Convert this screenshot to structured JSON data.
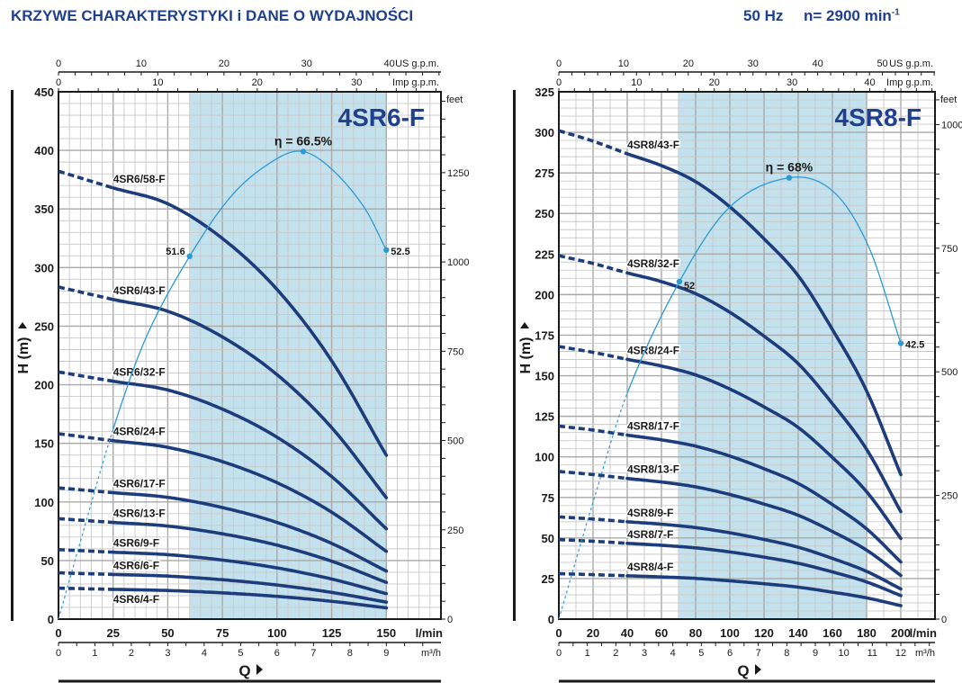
{
  "header": {
    "title": "KRZYWE CHARAKTERYSTYKI i DANE O WYDAJNOŚCI",
    "frequency": "50 Hz",
    "speed": "n= 2900 min",
    "speed_exponent": "-1"
  },
  "colors": {
    "title": "#1f3f8f",
    "curve": "#1d3c7c",
    "efficiency": "#2b9bd3",
    "shaded_zone": "#c4e2ee",
    "grid": "#c9c9c9"
  },
  "chart_data": [
    {
      "type": "line",
      "title": "4SR6-F",
      "xlabel": "Q",
      "x_unit": "l/min",
      "ylabel": "H (m)",
      "xlim": [
        0,
        175
      ],
      "ylim": [
        0,
        450
      ],
      "xticks": [
        0,
        25,
        50,
        75,
        100,
        125,
        150
      ],
      "yticks": [
        0,
        50,
        100,
        150,
        200,
        250,
        300,
        350,
        400,
        450
      ],
      "grid": true,
      "shaded_range": [
        60,
        150
      ],
      "secondary_axes": {
        "top_us": {
          "label": "US g.p.m.",
          "ticks": [
            0,
            10,
            20,
            30,
            40
          ]
        },
        "top_imp": {
          "label": "Imp g.p.m.",
          "ticks": [
            0,
            10,
            20,
            30
          ]
        },
        "bottom_m3h": {
          "label": "m³/h",
          "ticks": [
            0,
            1,
            2,
            3,
            4,
            5,
            6,
            7,
            8,
            9
          ]
        },
        "right_feet": {
          "label": "feet",
          "ticks": [
            0,
            250,
            500,
            750,
            1000,
            1250
          ]
        }
      },
      "dashed_below": 25,
      "x": [
        0,
        25,
        50,
        75,
        100,
        125,
        150
      ],
      "series": [
        {
          "name": "4SR6/58-F",
          "values": [
            382.2,
            368.0,
            354.4,
            324.8,
            281.3,
            220.4,
            139.8
          ]
        },
        {
          "name": "4SR6/43-F",
          "values": [
            283.4,
            272.8,
            262.7,
            240.8,
            208.6,
            163.4,
            103.6
          ]
        },
        {
          "name": "4SR6/32-F",
          "values": [
            210.9,
            203.0,
            195.5,
            179.2,
            155.2,
            121.6,
            77.1
          ]
        },
        {
          "name": "4SR6/24-F",
          "values": [
            158.2,
            152.3,
            146.6,
            134.4,
            116.4,
            91.2,
            57.8
          ]
        },
        {
          "name": "4SR6/17-F",
          "values": [
            112.0,
            107.9,
            103.9,
            95.2,
            82.5,
            64.6,
            41.0
          ]
        },
        {
          "name": "4SR6/13-F",
          "values": [
            85.7,
            82.5,
            79.4,
            72.8,
            63.1,
            49.4,
            31.3
          ]
        },
        {
          "name": "4SR6/9-F",
          "values": [
            59.3,
            57.1,
            55.0,
            50.4,
            43.7,
            34.2,
            21.7
          ]
        },
        {
          "name": "4SR6/6-F",
          "values": [
            39.5,
            38.1,
            36.7,
            33.6,
            29.1,
            22.8,
            14.5
          ]
        },
        {
          "name": "4SR6/4-F",
          "values": [
            26.4,
            25.4,
            24.4,
            22.4,
            19.4,
            15.2,
            9.6
          ]
        }
      ],
      "efficiency": {
        "dashed_below": 25,
        "q": [
          0,
          10,
          25,
          40,
          60,
          80,
          100,
          112,
          125,
          140,
          150
        ],
        "eta_percent": [
          0,
          11,
          27,
          40,
          51.6,
          60.5,
          65.5,
          66.5,
          64,
          58.5,
          52.5
        ],
        "annotations": [
          {
            "q": 60,
            "eta": 51.6,
            "label": "51.6",
            "side": "left"
          },
          {
            "q": 112,
            "eta": 66.5,
            "label": "η = 66.5%",
            "side": "top"
          },
          {
            "q": 150,
            "eta": 52.5,
            "label": "52.5",
            "side": "right"
          }
        ]
      }
    },
    {
      "type": "line",
      "title": "4SR8-F",
      "xlabel": "Q",
      "x_unit": "l/min",
      "ylabel": "H (m)",
      "xlim": [
        0,
        220
      ],
      "ylim": [
        0,
        325
      ],
      "xticks": [
        0,
        20,
        40,
        60,
        80,
        100,
        120,
        140,
        160,
        180,
        200
      ],
      "yticks": [
        0,
        25,
        50,
        75,
        100,
        125,
        150,
        175,
        200,
        225,
        250,
        275,
        300,
        325
      ],
      "grid": true,
      "shaded_range": [
        70,
        180
      ],
      "secondary_axes": {
        "top_us": {
          "label": "US g.p.m.",
          "ticks": [
            0,
            10,
            20,
            30,
            40,
            50
          ]
        },
        "top_imp": {
          "label": "Imp g.p.m.",
          "ticks": [
            0,
            10,
            20,
            30,
            40
          ]
        },
        "bottom_m3h": {
          "label": "m³/h",
          "ticks": [
            0,
            1,
            2,
            3,
            4,
            5,
            6,
            7,
            8,
            9,
            10,
            11,
            12
          ]
        },
        "right_feet": {
          "label": "feet",
          "ticks": [
            0,
            250,
            500,
            750,
            1000
          ]
        }
      },
      "dashed_below": 40,
      "x": [
        0,
        20,
        40,
        60,
        80,
        100,
        120,
        140,
        160,
        180,
        200
      ],
      "series": [
        {
          "name": "4SR8/43-F",
          "values": [
            301,
            294.6,
            286.8,
            279.5,
            269.6,
            254.1,
            234.4,
            211.6,
            178.5,
            140.6,
            89.0
          ]
        },
        {
          "name": "4SR8/32-F",
          "values": [
            224,
            219.2,
            213.4,
            208,
            200.6,
            189.1,
            174.4,
            157.4,
            132.8,
            104.6,
            66.2
          ]
        },
        {
          "name": "4SR8/24-F",
          "values": [
            168,
            164.4,
            160.1,
            156,
            150.5,
            141.8,
            130.8,
            118.1,
            99.6,
            78.5,
            49.7
          ]
        },
        {
          "name": "4SR8/17-F",
          "values": [
            119,
            116.5,
            113.4,
            110.5,
            106.6,
            100.5,
            92.7,
            83.6,
            70.6,
            55.6,
            35.2
          ]
        },
        {
          "name": "4SR8/13-F",
          "values": [
            91,
            89.1,
            86.7,
            84.5,
            81.5,
            76.8,
            70.9,
            64.0,
            54.0,
            42.5,
            26.9
          ]
        },
        {
          "name": "4SR8/9-F",
          "values": [
            63,
            61.7,
            60.0,
            58.5,
            56.4,
            53.2,
            49.1,
            44.3,
            37.4,
            29.4,
            18.6
          ]
        },
        {
          "name": "4SR8/7-F",
          "values": [
            49,
            48.0,
            46.7,
            45.5,
            43.9,
            41.4,
            38.2,
            34.4,
            29.1,
            22.9,
            14.5
          ]
        },
        {
          "name": "4SR8/4-F",
          "values": [
            28,
            27.4,
            26.7,
            26.0,
            25.1,
            23.6,
            21.8,
            19.7,
            16.6,
            13.1,
            8.3
          ]
        }
      ],
      "efficiency": {
        "dashed_below": 40,
        "q": [
          0,
          20,
          40,
          70.5,
          100,
          134.7,
          160,
          181,
          200
        ],
        "eta_percent": [
          0,
          18,
          34.8,
          52,
          63.5,
          68,
          66,
          57.5,
          42.5
        ],
        "annotations": [
          {
            "q": 70.5,
            "eta": 52,
            "label": "52",
            "side": "below-right"
          },
          {
            "q": 134.7,
            "eta": 68,
            "label": "η = 68%",
            "side": "top"
          },
          {
            "q": 200,
            "eta": 42.5,
            "label": "42.5",
            "side": "right"
          }
        ]
      }
    }
  ]
}
